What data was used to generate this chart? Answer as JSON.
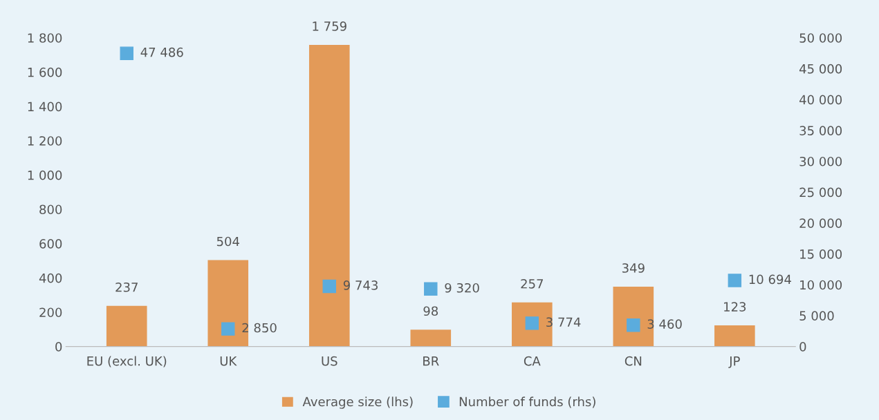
{
  "chart_data": {
    "type": "bar",
    "categories": [
      "EU (excl. UK)",
      "UK",
      "US",
      "BR",
      "CA",
      "CN",
      "JP"
    ],
    "series": [
      {
        "name": "Average size (lhs)",
        "color": "#e39a58",
        "values": [
          237,
          504,
          1759,
          98,
          257,
          349,
          123
        ],
        "value_labels": [
          "237",
          "504",
          "1 759",
          "98",
          "257",
          "349",
          "123"
        ]
      },
      {
        "name": "Number of funds (rhs)",
        "type": "scatter",
        "axis": "y2",
        "color": "#5bacdd",
        "marker": "square",
        "values": [
          47486,
          2850,
          9743,
          9320,
          3774,
          3460,
          10694
        ],
        "value_labels": [
          "47 486",
          "2 850",
          "9 743",
          "9 320",
          "3 774",
          "3 460",
          "10 694"
        ]
      }
    ],
    "ylim": [
      0,
      1800
    ],
    "yticks": [
      0,
      200,
      400,
      600,
      800,
      {
        "value": 1000,
        "label": "1 000"
      },
      {
        "value": 1200,
        "label": "1 200"
      },
      {
        "value": 1400,
        "label": "1 400"
      },
      {
        "value": 1600,
        "label": "1 600"
      },
      {
        "value": 1800,
        "label": "1 800"
      }
    ],
    "y2lim": [
      0,
      50000
    ],
    "y2ticks": [
      0,
      {
        "value": 5000,
        "label": "5 000"
      },
      {
        "value": 10000,
        "label": "10 000"
      },
      {
        "value": 15000,
        "label": "15 000"
      },
      {
        "value": 20000,
        "label": "20 000"
      },
      {
        "value": 25000,
        "label": "25 000"
      },
      {
        "value": 30000,
        "label": "30 000"
      },
      {
        "value": 35000,
        "label": "35 000"
      },
      {
        "value": 40000,
        "label": "40 000"
      },
      {
        "value": 45000,
        "label": "45 000"
      },
      {
        "value": 50000,
        "label": "50 000"
      }
    ],
    "grid": false,
    "legend": "bottom"
  }
}
